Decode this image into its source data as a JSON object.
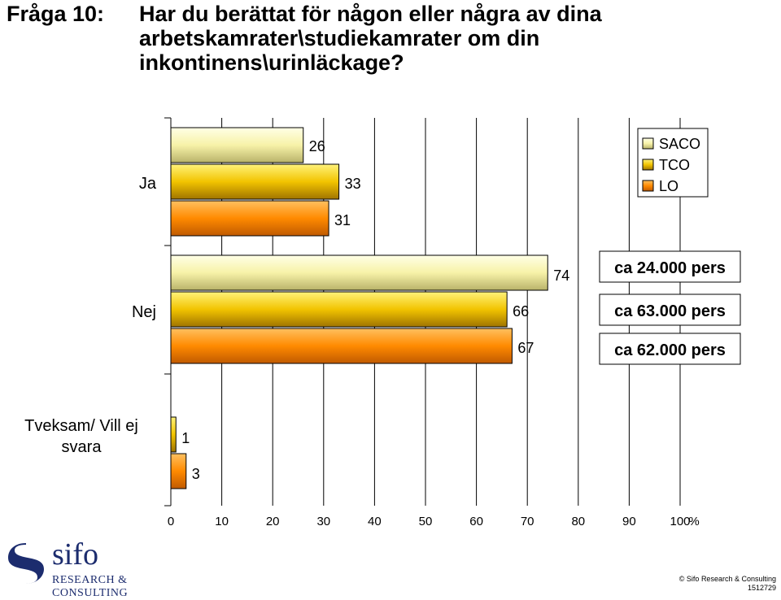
{
  "header": {
    "question_number": "Fråga 10:",
    "question_text": "Har du berättat för någon eller några av dina arbetskamrater\\studiekamrater om din inkontinens\\urinläckage?"
  },
  "chart_data": {
    "type": "bar",
    "orientation": "horizontal",
    "categories": [
      "Ja",
      "Nej",
      "Tveksam/ Vill ej svara"
    ],
    "series": [
      {
        "name": "SACO",
        "values": [
          26,
          74,
          null
        ],
        "color": "#ffffc0"
      },
      {
        "name": "TCO",
        "values": [
          33,
          66,
          1
        ],
        "color": "#ffcc00"
      },
      {
        "name": "LO",
        "values": [
          31,
          67,
          3
        ],
        "color": "#ff8c00"
      }
    ],
    "data_labels": [
      [
        "26",
        "74",
        ""
      ],
      [
        "33",
        "66",
        "1"
      ],
      [
        "31",
        "67",
        "3"
      ]
    ],
    "x_ticks": [
      "0",
      "10",
      "20",
      "30",
      "40",
      "50",
      "60",
      "70",
      "80",
      "90",
      "100"
    ],
    "x_unit": "%",
    "xlim": [
      0,
      100
    ],
    "legend": {
      "placement": "top-right",
      "entries": [
        "SACO",
        "TCO",
        "LO"
      ]
    },
    "annotations": [
      "ca 24.000 pers",
      "ca 63.000 pers",
      "ca 62.000 pers"
    ],
    "grid": true
  },
  "footer": {
    "logo_word": "sifo",
    "logo_sub": "RESEARCH & CONSULTING",
    "copyright": "© Sifo Research & Consulting",
    "doc_number": "1512729"
  }
}
